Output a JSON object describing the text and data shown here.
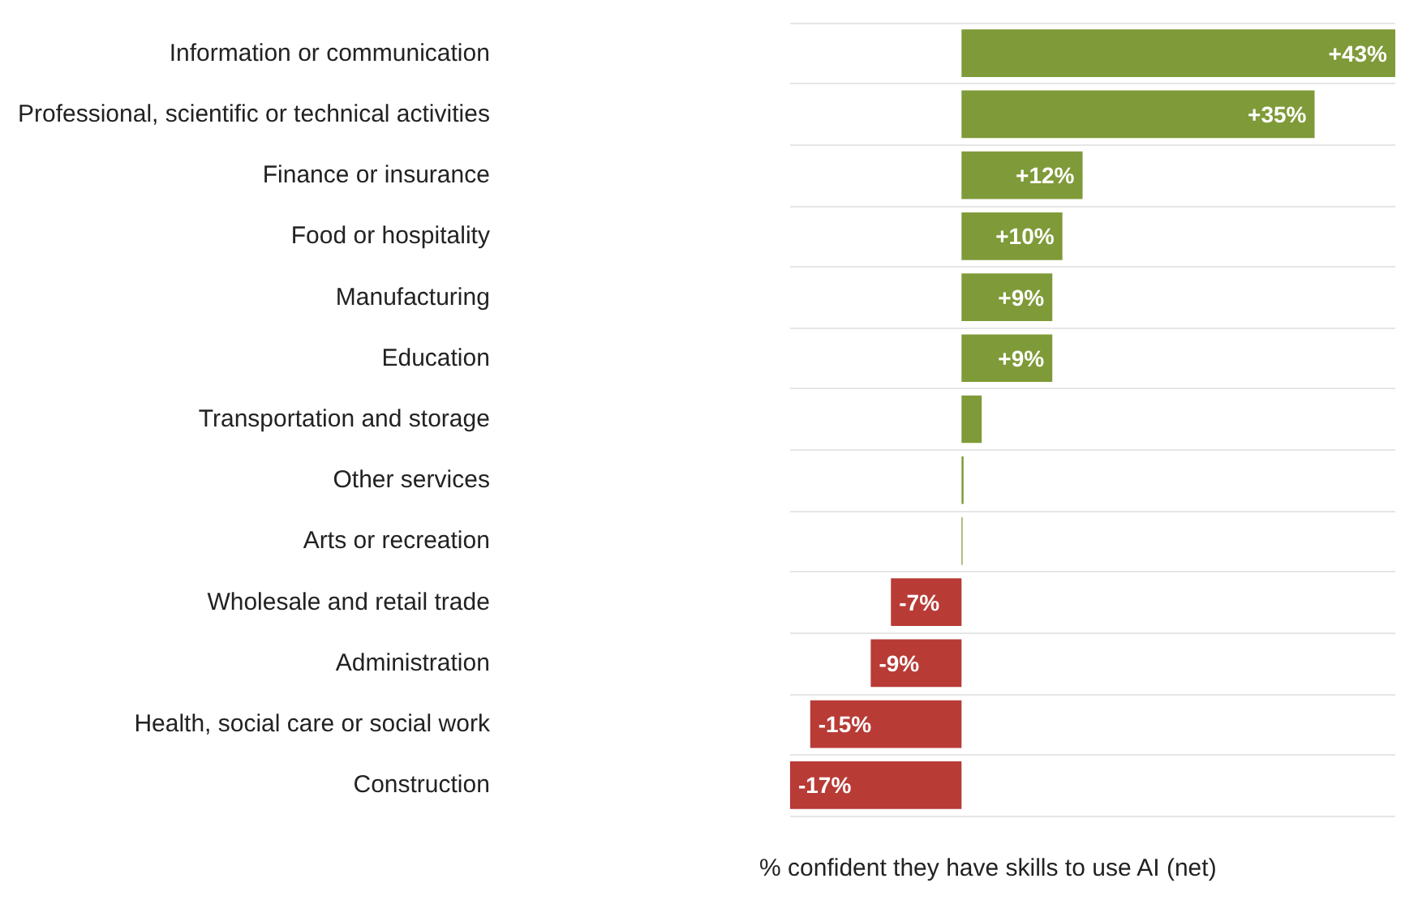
{
  "chart_data": {
    "type": "bar",
    "orientation": "horizontal",
    "xlabel": "% confident they have skills to use AI (net)",
    "categories": [
      "Information or communication",
      "Professional, scientific or technical activities",
      "Finance or insurance",
      "Food or hospitality",
      "Manufacturing",
      "Education",
      "Transportation and storage",
      "Other services",
      "Arts or recreation",
      "Wholesale and retail trade",
      "Administration",
      "Health, social care or social work",
      "Construction"
    ],
    "values": [
      43,
      35,
      12,
      10,
      9,
      9,
      2,
      0.2,
      0.1,
      -7,
      -9,
      -15,
      -17
    ],
    "value_labels": [
      "+43%",
      "+35%",
      "+12%",
      "+10%",
      "+9%",
      "+9%",
      null,
      null,
      null,
      "-7%",
      "-9%",
      "-15%",
      "-17%"
    ],
    "colors": [
      "#7f9a38",
      "#7f9a38",
      "#7f9a38",
      "#7f9a38",
      "#7f9a38",
      "#7f9a38",
      "#7f9a38",
      "#7f9a38",
      "#7f9a38",
      "#b83b36",
      "#b83b36",
      "#b83b36",
      "#b83b36"
    ],
    "grid": "y"
  }
}
